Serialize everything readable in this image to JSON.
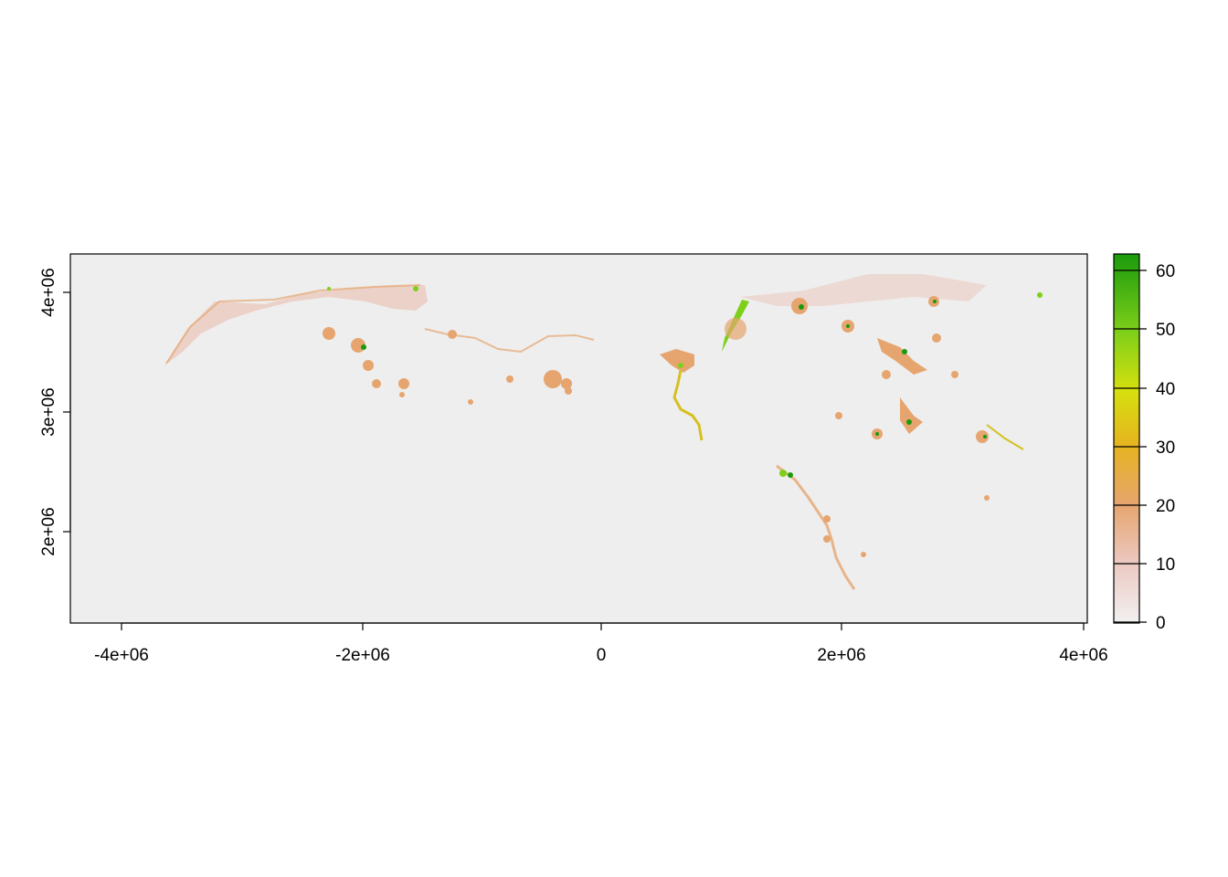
{
  "plot": {
    "x_tick_labels": [
      "-4e+06",
      "-2e+06",
      "0",
      "2e+06",
      "4e+06"
    ],
    "y_tick_labels": [
      "2e+06",
      "3e+06",
      "4e+06"
    ]
  },
  "legend": {
    "tick_labels": [
      "0",
      "10",
      "20",
      "30",
      "40",
      "50",
      "60"
    ],
    "gradient_colors": [
      "#f1f1f1",
      "#ecc9c2",
      "#e6a56f",
      "#e6b320",
      "#d6e00f",
      "#7ecf19",
      "#1a9a0c"
    ]
  },
  "chart_data": {
    "type": "heatmap",
    "title": "",
    "xlabel": "",
    "ylabel": "",
    "xlim": [
      -4400000,
      4050000
    ],
    "ylim": [
      1240000,
      4330000
    ],
    "x_ticks": [
      -4000000,
      -2000000,
      0,
      2000000,
      4000000
    ],
    "y_ticks": [
      2000000,
      3000000,
      4000000
    ],
    "value_range": [
      0,
      63
    ],
    "legend_ticks": [
      0,
      10,
      20,
      30,
      40,
      50,
      60
    ],
    "background_color": "#eeeeee",
    "grid": false,
    "legend_position": "right"
  }
}
